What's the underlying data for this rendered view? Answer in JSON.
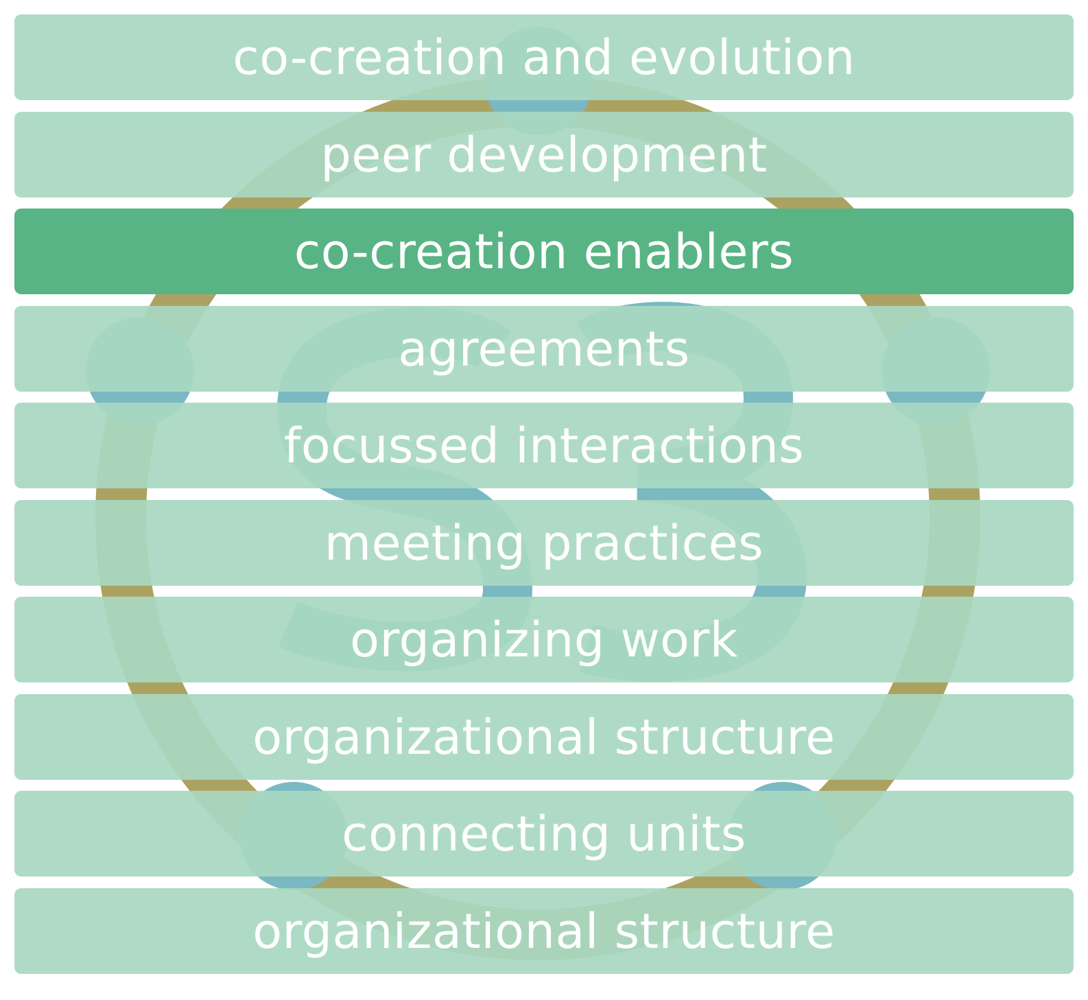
{
  "colors": {
    "band": "#a8d8c1",
    "highlight_band": "#58b484",
    "text": "#ffffff",
    "logo_ring": "#aba262",
    "logo_blue": "#7ab8c2"
  },
  "logo": {
    "icon": "s3-logo-icon"
  },
  "bands": [
    {
      "label": "co-creation and evolution",
      "highlight": false
    },
    {
      "label": "peer development",
      "highlight": false
    },
    {
      "label": "co-creation enablers",
      "highlight": true
    },
    {
      "label": "agreements",
      "highlight": false
    },
    {
      "label": "focussed interactions",
      "highlight": false
    },
    {
      "label": "meeting practices",
      "highlight": false
    },
    {
      "label": "organizing work",
      "highlight": false
    },
    {
      "label": "organizational structure",
      "highlight": false
    },
    {
      "label": "connecting units",
      "highlight": false
    },
    {
      "label": "organizational structure",
      "highlight": false
    }
  ]
}
